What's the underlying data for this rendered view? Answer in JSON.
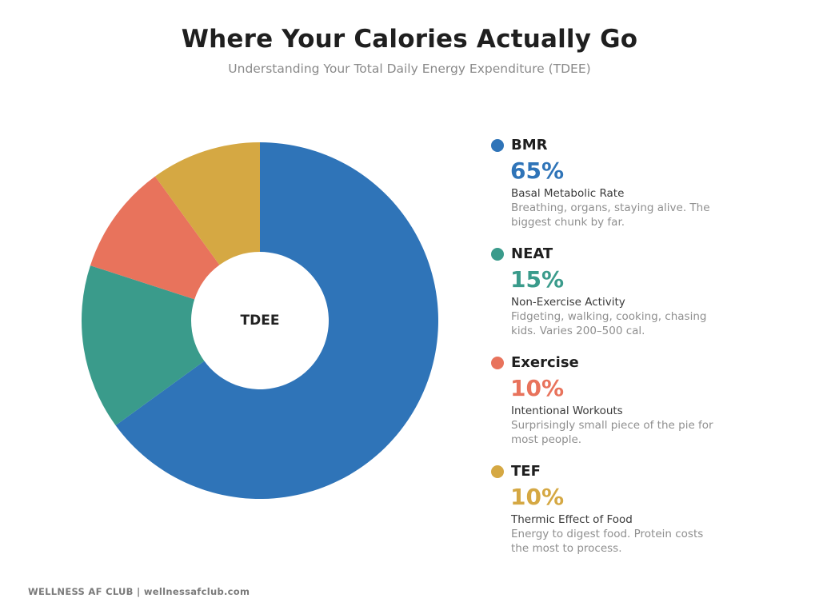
{
  "header": {
    "title": "Where Your Calories Actually Go",
    "subtitle": "Understanding Your Total Daily Energy Expenditure (TDEE)"
  },
  "chart_data": {
    "type": "pie",
    "title": "Where Your Calories Actually Go",
    "subtitle": "Understanding Your Total Daily Energy Expenditure (TDEE)",
    "center_label": "TDEE",
    "donut": true,
    "legend_position": "right",
    "slices": [
      {
        "label": "BMR",
        "value": 65,
        "value_label": "65%",
        "full_name": "Basal Metabolic Rate",
        "description": "Breathing, organs, staying alive. The biggest chunk by far.",
        "color": "#2f74b8"
      },
      {
        "label": "NEAT",
        "value": 15,
        "value_label": "15%",
        "full_name": "Non-Exercise Activity",
        "description": "Fidgeting, walking, cooking, chasing kids. Varies 200–500 cal.",
        "color": "#3a9b8b"
      },
      {
        "label": "Exercise",
        "value": 10,
        "value_label": "10%",
        "full_name": "Intentional Workouts",
        "description": "Surprisingly small piece of the pie for most people.",
        "color": "#e8735c"
      },
      {
        "label": "TEF",
        "value": 10,
        "value_label": "10%",
        "full_name": "Thermic Effect of Food",
        "description": "Energy to digest food. Protein costs the most to process.",
        "color": "#d5a843"
      }
    ]
  },
  "footer": {
    "text": "WELLNESS AF CLUB  |  wellnessafclub.com"
  }
}
